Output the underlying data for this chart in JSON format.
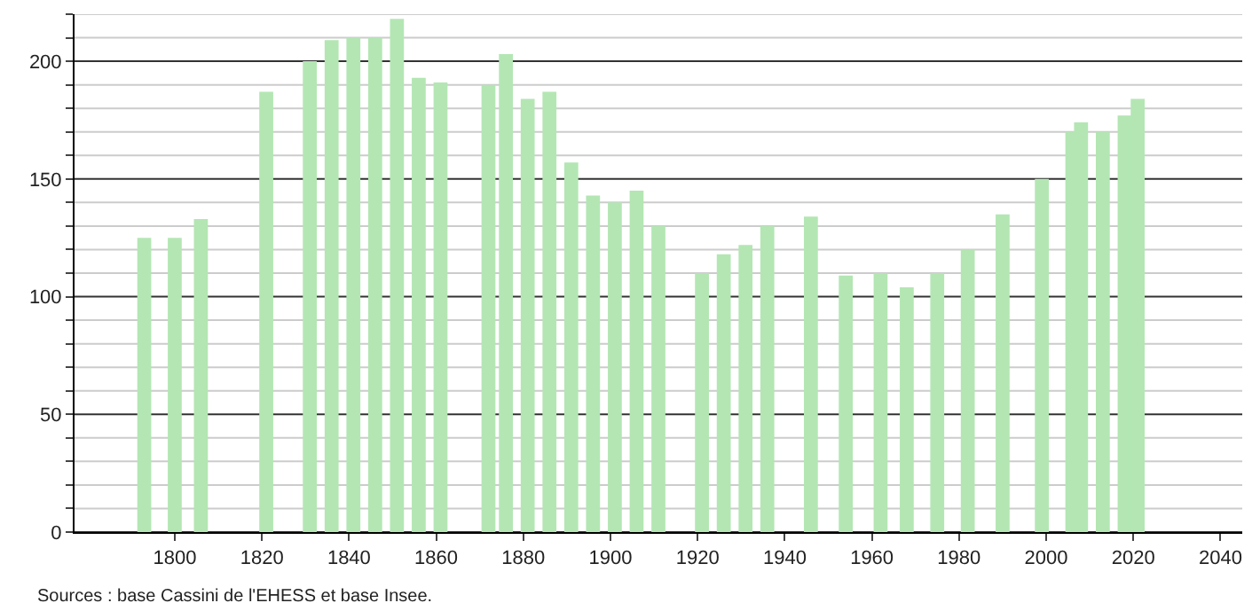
{
  "chart_data": {
    "type": "bar",
    "x": [
      1793,
      1800,
      1806,
      1821,
      1831,
      1836,
      1841,
      1846,
      1851,
      1856,
      1861,
      1872,
      1876,
      1881,
      1886,
      1891,
      1896,
      1901,
      1906,
      1911,
      1921,
      1926,
      1931,
      1936,
      1946,
      1954,
      1962,
      1968,
      1975,
      1982,
      1990,
      1999,
      2006,
      2008,
      2013,
      2018,
      2021
    ],
    "values": [
      125,
      125,
      133,
      187,
      200,
      209,
      210,
      210,
      218,
      193,
      191,
      190,
      203,
      184,
      187,
      157,
      143,
      140,
      145,
      130,
      110,
      118,
      122,
      130,
      134,
      109,
      110,
      104,
      110,
      120,
      135,
      150,
      170,
      174,
      170,
      177,
      184
    ],
    "color": "#b3e6b3",
    "xlim": [
      1777,
      2045
    ],
    "xticks": [
      1800,
      1820,
      1840,
      1860,
      1880,
      1900,
      1920,
      1940,
      1960,
      1980,
      2000,
      2020,
      2040
    ],
    "ylim": [
      0,
      220
    ],
    "yticks": [
      0,
      {
        "value": 10,
        "label": null
      },
      {
        "value": 20,
        "label": null
      },
      {
        "value": 30,
        "label": null
      },
      {
        "value": 40,
        "label": null
      },
      50,
      {
        "value": 60,
        "label": null
      },
      {
        "value": 70,
        "label": null
      },
      {
        "value": 80,
        "label": null
      },
      {
        "value": 90,
        "label": null
      },
      100,
      {
        "value": 110,
        "label": null
      },
      {
        "value": 120,
        "label": null
      },
      {
        "value": 130,
        "label": null
      },
      {
        "value": 140,
        "label": null
      },
      150,
      {
        "value": 160,
        "label": null
      },
      {
        "value": 170,
        "label": null
      },
      {
        "value": 180,
        "label": null
      },
      {
        "value": 190,
        "label": null
      },
      200,
      {
        "value": 210,
        "label": null
      },
      {
        "value": 220,
        "label": null
      }
    ],
    "grid": "y",
    "annotations": [
      "Sources : base Cassini de l'EHESS et base Insee."
    ]
  }
}
